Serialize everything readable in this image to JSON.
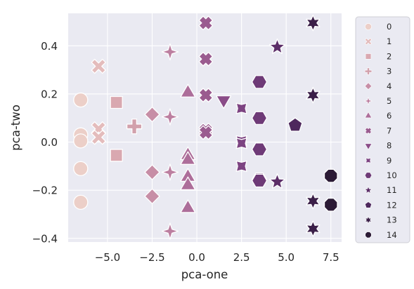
{
  "chart_data": {
    "type": "scatter",
    "xlabel": "pca-one",
    "ylabel": "pca-two",
    "xlim": [
      -7.2,
      8.1
    ],
    "ylim": [
      -0.415,
      0.535
    ],
    "xticks": [
      -5.0,
      -2.5,
      0.0,
      2.5,
      5.0,
      7.5
    ],
    "xtick_labels": [
      "−5.0",
      "−2.5",
      "0.0",
      "2.5",
      "5.0",
      "7.5"
    ],
    "yticks": [
      -0.4,
      -0.2,
      0.0,
      0.2,
      0.4
    ],
    "ytick_labels": [
      "−0.4",
      "−0.2",
      "0.0",
      "0.2",
      "0.4"
    ],
    "grid": true,
    "legend_position": "outside-right",
    "series": [
      {
        "name": "0",
        "marker": "circle",
        "color": "#eccfc8",
        "points": [
          [
            -6.5,
            0.175
          ],
          [
            -6.5,
            0.03
          ],
          [
            -6.5,
            0.005
          ],
          [
            -6.5,
            -0.11
          ],
          [
            -6.5,
            -0.25
          ]
        ]
      },
      {
        "name": "1",
        "marker": "x",
        "color": "#e4bcbc",
        "points": [
          [
            -5.5,
            0.315
          ],
          [
            -5.5,
            0.055
          ],
          [
            -5.5,
            0.02
          ]
        ]
      },
      {
        "name": "2",
        "marker": "square",
        "color": "#d9a8b0",
        "points": [
          [
            -4.5,
            0.165
          ],
          [
            -4.5,
            -0.055
          ]
        ]
      },
      {
        "name": "3",
        "marker": "plus",
        "color": "#d2a1ac",
        "points": [
          [
            -3.5,
            0.065
          ]
        ]
      },
      {
        "name": "4",
        "marker": "diamond",
        "color": "#c78ea6",
        "points": [
          [
            -2.5,
            0.115
          ],
          [
            -2.5,
            -0.125
          ],
          [
            -2.5,
            -0.225
          ]
        ]
      },
      {
        "name": "5",
        "marker": "star4",
        "color": "#bc7fa0",
        "points": [
          [
            -1.5,
            0.375
          ],
          [
            -1.5,
            0.105
          ],
          [
            -1.5,
            -0.125
          ],
          [
            -1.5,
            -0.37
          ]
        ]
      },
      {
        "name": "6",
        "marker": "triangle-up",
        "color": "#ad6e9a",
        "points": [
          [
            -0.5,
            0.205
          ],
          [
            -0.5,
            -0.055
          ],
          [
            -0.5,
            -0.075
          ],
          [
            -0.5,
            -0.145
          ],
          [
            -0.5,
            -0.18
          ],
          [
            -0.5,
            -0.275
          ]
        ]
      },
      {
        "name": "7",
        "marker": "x-heavy",
        "color": "#9a5b8f",
        "points": [
          [
            0.5,
            0.495
          ],
          [
            0.5,
            0.345
          ],
          [
            0.5,
            0.195
          ],
          [
            0.5,
            0.05
          ],
          [
            0.5,
            0.04
          ]
        ]
      },
      {
        "name": "8",
        "marker": "triangle-down",
        "color": "#8a4c88",
        "points": [
          [
            1.5,
            0.175
          ]
        ]
      },
      {
        "name": "9",
        "marker": "star4-heavy",
        "color": "#7d4482",
        "points": [
          [
            2.5,
            0.14
          ],
          [
            2.5,
            0.005
          ],
          [
            2.5,
            -0.005
          ],
          [
            2.5,
            -0.1
          ]
        ]
      },
      {
        "name": "10",
        "marker": "hexagon",
        "color": "#6e3a77",
        "points": [
          [
            3.5,
            0.25
          ],
          [
            3.5,
            0.1
          ],
          [
            3.5,
            -0.03
          ],
          [
            3.5,
            -0.155
          ],
          [
            3.5,
            -0.16
          ]
        ]
      },
      {
        "name": "11",
        "marker": "star5",
        "color": "#5c2e68",
        "points": [
          [
            4.5,
            0.395
          ],
          [
            4.5,
            -0.165
          ]
        ]
      },
      {
        "name": "12",
        "marker": "pentagon",
        "color": "#4e285d",
        "points": [
          [
            5.5,
            0.07
          ]
        ]
      },
      {
        "name": "13",
        "marker": "star6",
        "color": "#3b1f48",
        "points": [
          [
            6.5,
            0.495
          ],
          [
            6.5,
            0.195
          ],
          [
            6.5,
            -0.245
          ],
          [
            6.5,
            -0.36
          ]
        ]
      },
      {
        "name": "14",
        "marker": "octagon",
        "color": "#2b1a35",
        "points": [
          [
            7.5,
            -0.14
          ],
          [
            7.5,
            -0.26
          ]
        ]
      }
    ]
  }
}
